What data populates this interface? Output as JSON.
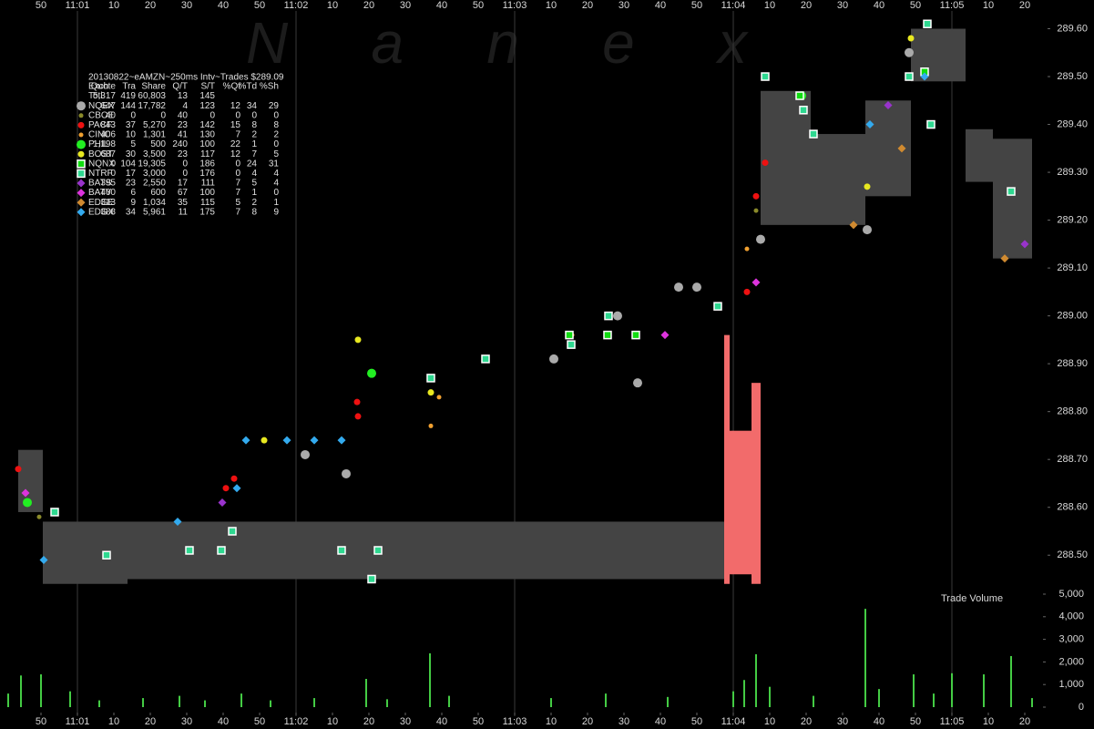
{
  "chart_data": {
    "type": "scatter",
    "watermark": "N a n e x",
    "xlim": [
      38.75,
      339
    ],
    "xticks": [
      50,
      {
        "value": 60,
        "label": "11:01"
      },
      {
        "value": 70,
        "label": "10"
      },
      {
        "value": 80,
        "label": "20"
      },
      {
        "value": 90,
        "label": "30"
      },
      {
        "value": 100,
        "label": "40"
      },
      {
        "value": 110,
        "label": "50"
      },
      {
        "value": 120,
        "label": "11:02"
      },
      {
        "value": 130,
        "label": "10"
      },
      {
        "value": 140,
        "label": "20"
      },
      {
        "value": 150,
        "label": "30"
      },
      {
        "value": 160,
        "label": "40"
      },
      {
        "value": 170,
        "label": "50"
      },
      {
        "value": 180,
        "label": "11:03"
      },
      {
        "value": 190,
        "label": "10"
      },
      {
        "value": 200,
        "label": "20"
      },
      {
        "value": 210,
        "label": "30"
      },
      {
        "value": 220,
        "label": "40"
      },
      {
        "value": 230,
        "label": "50"
      },
      {
        "value": 240,
        "label": "11:04"
      },
      {
        "value": 250,
        "label": "10"
      },
      {
        "value": 260,
        "label": "20"
      },
      {
        "value": 270,
        "label": "30"
      },
      {
        "value": 280,
        "label": "40"
      },
      {
        "value": 290,
        "label": "50"
      },
      {
        "value": 300,
        "label": "11:05"
      },
      {
        "value": 310,
        "label": "10"
      },
      {
        "value": 320,
        "label": "20"
      }
    ],
    "xgrid": [
      60,
      120,
      180,
      240,
      300
    ],
    "ylim": [
      288.43,
      289.66
    ],
    "yticks": [
      {
        "value": 288.5,
        "label": "288.50"
      },
      {
        "value": 288.6,
        "label": "288.60"
      },
      {
        "value": 288.7,
        "label": "288.70"
      },
      {
        "value": 288.8,
        "label": "288.80"
      },
      {
        "value": 288.9,
        "label": "288.90"
      },
      {
        "value": 289.0,
        "label": "289.00"
      },
      {
        "value": 289.1,
        "label": "289.10"
      },
      {
        "value": 289.2,
        "label": "289.20"
      },
      {
        "value": 289.3,
        "label": "289.30"
      },
      {
        "value": 289.4,
        "label": "289.40"
      },
      {
        "value": 289.5,
        "label": "289.50"
      },
      {
        "value": 289.6,
        "label": "289.60"
      }
    ],
    "legend_title": "20130822~eAMZN~250ms Intv~Trades $289.09",
    "columns": [
      "Exch",
      "Quote",
      "Tra",
      "Share",
      "Q/T",
      "S/T",
      "%Qt",
      "%Td",
      "%Sh"
    ],
    "total": {
      "name": "Totl",
      "stats": [
        "5,317",
        "419",
        "60,803",
        "13",
        "145"
      ]
    },
    "bands": [
      {
        "color": "#444444",
        "x": [
          43.75,
          50.5,
          73.75,
          237.5,
          247.5,
          261.25,
          276.25,
          288.75,
          303.75,
          311.25,
          322
        ],
        "upper": [
          288.72,
          288.57,
          288.57,
          null,
          289.47,
          289.38,
          289.45,
          289.6,
          289.39,
          289.37,
          null
        ],
        "lower": [
          288.59,
          288.44,
          288.45,
          null,
          289.19,
          289.19,
          289.25,
          289.49,
          289.28,
          289.12,
          null
        ]
      },
      {
        "color": "#f26b6b",
        "x": [
          237.5,
          239,
          245,
          247.5
        ],
        "upper": [
          288.96,
          288.76,
          288.86,
          null
        ],
        "lower": [
          288.44,
          288.46,
          288.44,
          null
        ]
      }
    ],
    "series": [
      {
        "name": "NQEX",
        "color": "#aaaaaa",
        "marker": "large-circle",
        "stats": [
          "647",
          "144",
          "17,782",
          "4",
          "123",
          "12",
          "34",
          "29"
        ],
        "x": [
          190.75,
          208.25,
          225,
          230,
          213.75,
          133.75,
          122.5,
          247.5,
          288.25,
          276.75
        ],
        "y": [
          288.91,
          289.0,
          289.06,
          289.06,
          288.86,
          288.67,
          288.71,
          289.16,
          289.55,
          289.18
        ]
      },
      {
        "name": "CBOE",
        "color": "#8a8a2a",
        "marker": "small-circle",
        "stats": [
          "40",
          "0",
          "0",
          "40",
          "0",
          "0",
          "0",
          "0"
        ],
        "x": [
          49.5,
          246.25
        ],
        "y": [
          288.58,
          289.22
        ]
      },
      {
        "name": "PACF",
        "color": "#ee1111",
        "marker": "circle",
        "stats": [
          "843",
          "37",
          "5,270",
          "23",
          "142",
          "15",
          "8",
          "8"
        ],
        "x": [
          43.75,
          103,
          100.75,
          137,
          136.75,
          243.75,
          246.25,
          248.75
        ],
        "y": [
          288.68,
          288.66,
          288.64,
          288.79,
          288.82,
          289.05,
          289.25,
          289.32
        ]
      },
      {
        "name": "CINC",
        "color": "#f0a030",
        "marker": "small-circle",
        "stats": [
          "406",
          "10",
          "1,301",
          "41",
          "130",
          "7",
          "2",
          "2"
        ],
        "x": [
          195.75,
          159.25,
          157,
          243.75
        ],
        "y": [
          288.96,
          288.83,
          288.77,
          289.14
        ]
      },
      {
        "name": "PHIL",
        "color": "#22ee22",
        "marker": "large-circle",
        "stats": [
          "1,198",
          "5",
          "500",
          "240",
          "100",
          "22",
          "1",
          "0"
        ],
        "x": [
          46.25,
          258.75,
          140.75
        ],
        "y": [
          288.61,
          289.46,
          288.88
        ]
      },
      {
        "name": "BOST",
        "color": "#e8e820",
        "marker": "circle",
        "stats": [
          "687",
          "30",
          "3,500",
          "23",
          "117",
          "12",
          "7",
          "5"
        ],
        "x": [
          137,
          111.25,
          157,
          276.75,
          288.75
        ],
        "y": [
          288.95,
          288.74,
          288.84,
          289.27,
          289.58
        ]
      },
      {
        "name": "NQNX",
        "color": "#11dd11",
        "marker": "square",
        "stats": [
          "0",
          "104",
          "19,305",
          "0",
          "186",
          "0",
          "24",
          "31"
        ],
        "x": [
          205.5,
          213.25,
          258.25,
          195,
          292.5
        ],
        "y": [
          288.96,
          288.96,
          289.46,
          288.96,
          289.51
        ]
      },
      {
        "name": "NTRF",
        "color": "#2ed890",
        "marker": "square",
        "stats": [
          "0",
          "17",
          "3,000",
          "0",
          "176",
          "0",
          "4",
          "4"
        ],
        "x": [
          68,
          90.75,
          99.5,
          132.5,
          142.5,
          140.75,
          157,
          172,
          195.5,
          205.75,
          235.75,
          248.75,
          259.25,
          262,
          288.25,
          294.25,
          293.25,
          316.25,
          53.75,
          102.5
        ],
        "y": [
          288.5,
          288.51,
          288.51,
          288.51,
          288.51,
          288.45,
          288.87,
          288.91,
          288.94,
          289.0,
          289.02,
          289.5,
          289.43,
          289.38,
          289.5,
          289.4,
          289.61,
          289.26,
          288.59,
          288.55
        ]
      },
      {
        "name": "BATS",
        "color": "#9933cc",
        "marker": "diamond",
        "stats": [
          "395",
          "23",
          "2,550",
          "17",
          "111",
          "7",
          "5",
          "4"
        ],
        "x": [
          99.75,
          320,
          282.5
        ],
        "y": [
          288.61,
          289.15,
          289.44
        ]
      },
      {
        "name": "BATY",
        "color": "#dd33dd",
        "marker": "diamond",
        "stats": [
          "400",
          "6",
          "600",
          "67",
          "100",
          "7",
          "1",
          "0"
        ],
        "x": [
          221.25,
          246.25,
          45.75
        ],
        "y": [
          288.96,
          289.07,
          288.63
        ]
      },
      {
        "name": "EDGE",
        "color": "#d08a30",
        "marker": "diamond",
        "stats": [
          "313",
          "9",
          "1,034",
          "35",
          "115",
          "5",
          "2",
          "1"
        ],
        "x": [
          273,
          286.25,
          314.5
        ],
        "y": [
          289.19,
          289.35,
          289.12
        ]
      },
      {
        "name": "EDGX",
        "color": "#33aaee",
        "marker": "diamond",
        "stats": [
          "388",
          "34",
          "5,961",
          "11",
          "175",
          "7",
          "8",
          "9"
        ],
        "x": [
          106.25,
          117.5,
          125,
          132.5,
          87.5,
          103.75,
          50.75,
          277.5,
          292.5
        ],
        "y": [
          288.74,
          288.74,
          288.74,
          288.74,
          288.57,
          288.64,
          288.49,
          289.4,
          289.5
        ]
      }
    ],
    "volume": {
      "label": "Trade Volume",
      "color": "#44cc44",
      "ylim": [
        0,
        5000
      ],
      "yticks": [
        0,
        {
          "value": 1000,
          "label": "1,000"
        },
        {
          "value": 2000,
          "label": "2,000"
        },
        {
          "value": 3000,
          "label": "3,000"
        },
        {
          "value": 4000,
          "label": "4,000"
        },
        {
          "value": 5000,
          "label": "5,000"
        }
      ],
      "x": [
        41,
        44.5,
        50,
        58,
        66,
        78,
        88,
        95,
        105,
        113,
        125,
        139.25,
        145,
        156.75,
        162,
        190,
        205,
        222,
        240,
        243,
        246.25,
        250,
        262,
        276.25,
        280,
        289.5,
        295,
        300,
        308.75,
        316.25,
        322
      ],
      "values": [
        600,
        1400,
        1450,
        700,
        300,
        400,
        500,
        300,
        600,
        300,
        400,
        1250,
        350,
        2380,
        500,
        400,
        600,
        450,
        700,
        1200,
        2340,
        900,
        500,
        4350,
        800,
        1450,
        600,
        1500,
        1450,
        2260,
        400
      ]
    }
  }
}
